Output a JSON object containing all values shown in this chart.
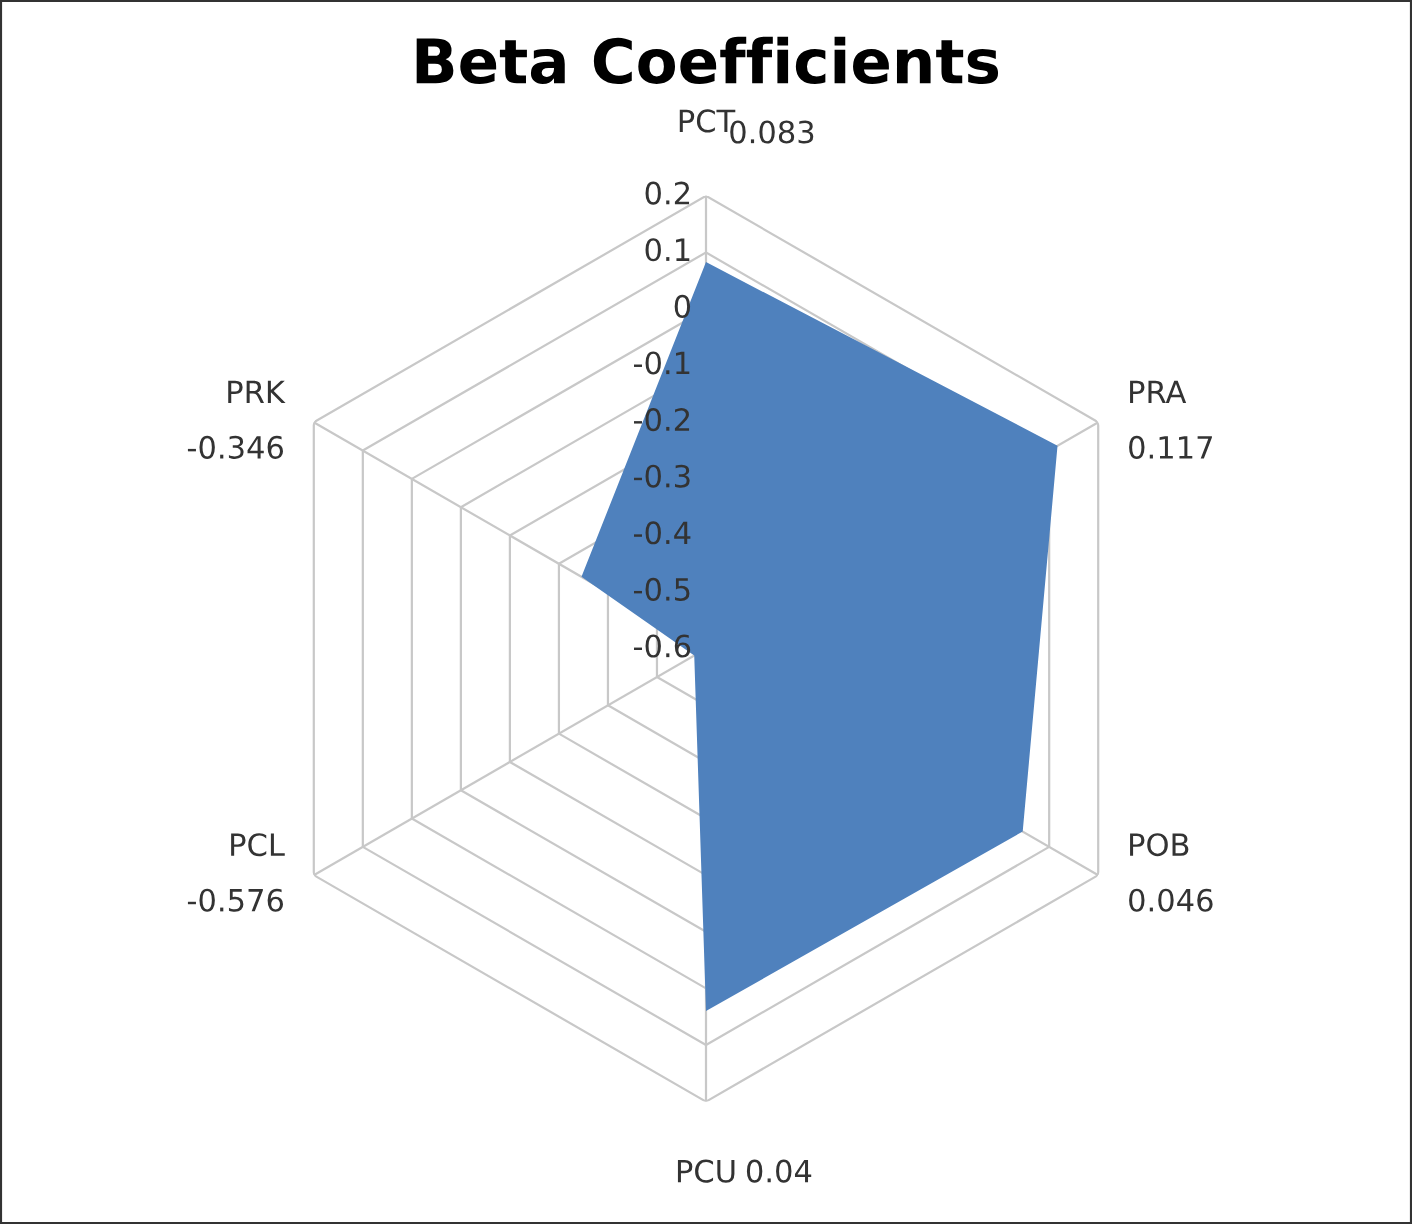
{
  "chart_data": {
    "type": "radar",
    "title": "Beta Coefficients",
    "categories": [
      "PCT",
      "PRA",
      "POB",
      "PCU",
      "PCL",
      "PRK"
    ],
    "series": [
      {
        "color": "#4f81bd",
        "values": [
          0.083,
          0.117,
          0.046,
          0.04,
          -0.576,
          -0.346
        ]
      }
    ],
    "ylim": [
      -0.6,
      0.2
    ],
    "yticks": [
      -0.6,
      -0.5,
      -0.4,
      -0.3,
      -0.2,
      -0.1,
      0,
      0.1,
      0.2
    ],
    "grid": true,
    "annotations": [
      "0.083",
      "0.117",
      "0.046",
      "0.04",
      "-0.576",
      "-0.346"
    ]
  }
}
